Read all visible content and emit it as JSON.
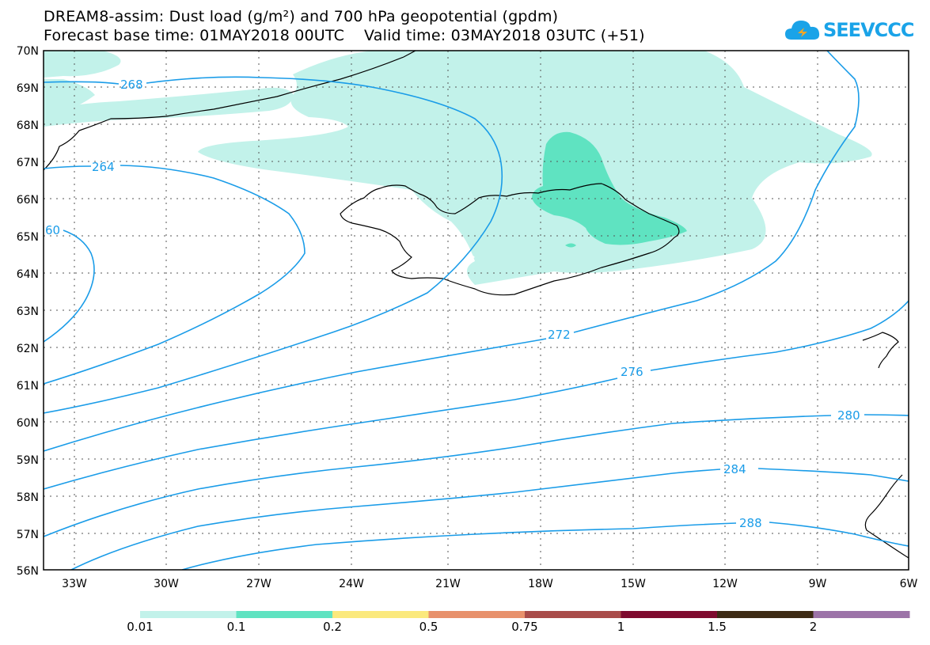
{
  "header": {
    "title_line1": "DREAM8-assim: Dust load (g/m²) and 700 hPa geopotential (gpdm)",
    "title_line2": "Forecast base time: 01MAY2018 00UTC    Valid time: 03MAY2018 03UTC (+51)",
    "logo_text": "SEEVCCC"
  },
  "axes": {
    "lat_labels": [
      "70N",
      "69N",
      "68N",
      "67N",
      "66N",
      "65N",
      "64N",
      "63N",
      "62N",
      "61N",
      "60N",
      "59N",
      "58N",
      "57N",
      "56N"
    ],
    "lon_labels": [
      "33W",
      "30W",
      "27W",
      "24W",
      "21W",
      "18W",
      "15W",
      "12W",
      "9W",
      "6W"
    ]
  },
  "contour_labels": [
    "268",
    "264",
    "60",
    "272",
    "276",
    "280",
    "284",
    "288"
  ],
  "legend": {
    "labels": [
      "0.01",
      "0.1",
      "0.2",
      "0.5",
      "0.75",
      "1",
      "1.5",
      "2"
    ],
    "colors": [
      "#c2f2ea",
      "#5fe3c1",
      "#fbe97d",
      "#e8916c",
      "#a94c4a",
      "#7e0a2e",
      "#3c2a14",
      "#9c73a8"
    ]
  },
  "colors": {
    "dust_low": "#c2f2ea",
    "dust_mid": "#5fe3c1",
    "contour": "#1a9ce8"
  }
}
